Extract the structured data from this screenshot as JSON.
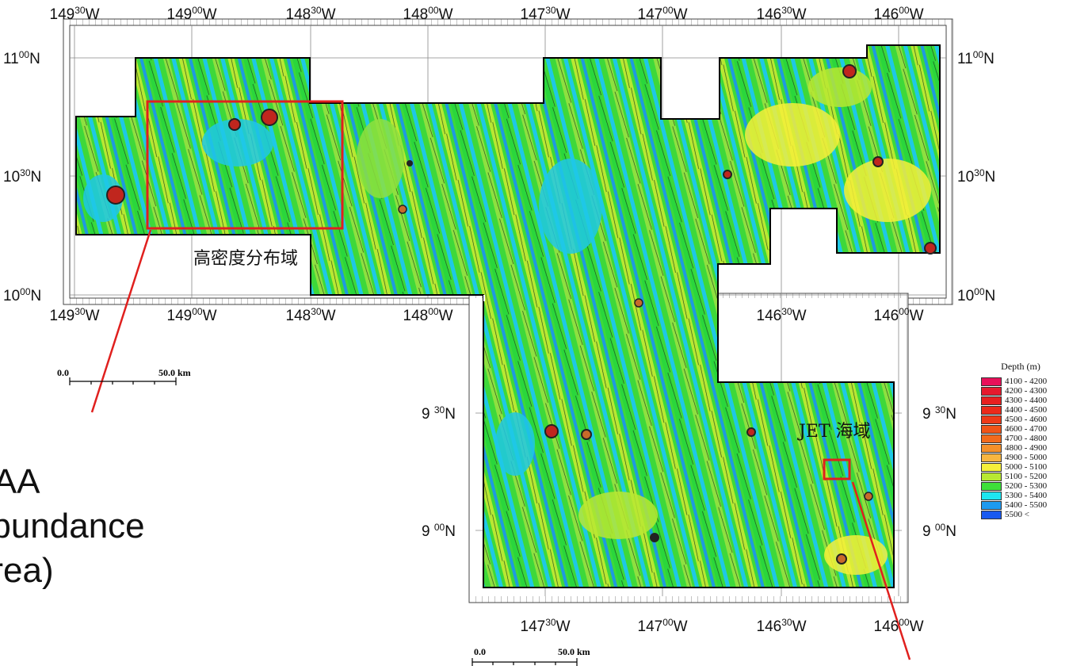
{
  "labels": {
    "high_density_jp": "高密度分布域",
    "jet_area_jp": "JET 海域",
    "haa_lines": [
      "HAA",
      "Abundance",
      "Area)"
    ],
    "scale_top_zero": "0.0",
    "scale_top_len": "50.0 km",
    "scale_bottom_zero": "0.0",
    "scale_bottom_len": "50.0 km"
  },
  "top_lon_labels": [
    {
      "deg": "149",
      "min": "30",
      "hemi": "W"
    },
    {
      "deg": "149",
      "min": "00",
      "hemi": "W"
    },
    {
      "deg": "148",
      "min": "30",
      "hemi": "W"
    },
    {
      "deg": "148",
      "min": "00",
      "hemi": "W"
    },
    {
      "deg": "147",
      "min": "30",
      "hemi": "W"
    },
    {
      "deg": "147",
      "min": "00",
      "hemi": "W"
    },
    {
      "deg": "146",
      "min": "30",
      "hemi": "W"
    },
    {
      "deg": "146",
      "min": "00",
      "hemi": "W"
    }
  ],
  "mid_lon_labels": [
    {
      "deg": "149",
      "min": "30",
      "hemi": "W"
    },
    {
      "deg": "149",
      "min": "00",
      "hemi": "W"
    },
    {
      "deg": "148",
      "min": "30",
      "hemi": "W"
    },
    {
      "deg": "148",
      "min": "00",
      "hemi": "W"
    },
    {
      "deg": "146",
      "min": "30",
      "hemi": "W"
    },
    {
      "deg": "146",
      "min": "00",
      "hemi": "W"
    }
  ],
  "bottom_lon_labels": [
    {
      "deg": "147",
      "min": "30",
      "hemi": "W"
    },
    {
      "deg": "147",
      "min": "00",
      "hemi": "W"
    },
    {
      "deg": "146",
      "min": "30",
      "hemi": "W"
    },
    {
      "deg": "146",
      "min": "00",
      "hemi": "W"
    }
  ],
  "lat_labels_left": [
    {
      "deg": "11",
      "min": "00",
      "hemi": "N"
    },
    {
      "deg": "10",
      "min": "30",
      "hemi": "N"
    },
    {
      "deg": "10",
      "min": "00",
      "hemi": "N"
    },
    {
      "deg": "9 ",
      "min": "30",
      "hemi": "N"
    },
    {
      "deg": "9 ",
      "min": "00",
      "hemi": "N"
    }
  ],
  "lat_labels_right": [
    {
      "deg": "11",
      "min": "00",
      "hemi": "N"
    },
    {
      "deg": "10",
      "min": "30",
      "hemi": "N"
    },
    {
      "deg": "10",
      "min": "00",
      "hemi": "N"
    },
    {
      "deg": "9 ",
      "min": "30",
      "hemi": "N"
    },
    {
      "deg": "9 ",
      "min": "00",
      "hemi": "N"
    }
  ],
  "legend": {
    "title": "Depth (m)",
    "entries": [
      {
        "label": "4100 - 4200",
        "color": "#e8105a"
      },
      {
        "label": "4200 - 4300",
        "color": "#e61a2e"
      },
      {
        "label": "4300 - 4400",
        "color": "#e82020"
      },
      {
        "label": "4400 - 4500",
        "color": "#ec2a1a"
      },
      {
        "label": "4500 - 4600",
        "color": "#ee3a18"
      },
      {
        "label": "4600 - 4700",
        "color": "#f05418"
      },
      {
        "label": "4700 - 4800",
        "color": "#f26a1c"
      },
      {
        "label": "4800 - 4900",
        "color": "#f5902a"
      },
      {
        "label": "4900 - 5000",
        "color": "#f8b640"
      },
      {
        "label": "5000 - 5100",
        "color": "#f6f03a"
      },
      {
        "label": "5100 - 5200",
        "color": "#b8e832"
      },
      {
        "label": "5200 - 5300",
        "color": "#3ee03a"
      },
      {
        "label": "5300 - 5400",
        "color": "#1ee6f0"
      },
      {
        "label": "5400 - 5500",
        "color": "#1e9af0"
      },
      {
        "label": "5500 <",
        "color": "#1a5af0"
      }
    ]
  }
}
